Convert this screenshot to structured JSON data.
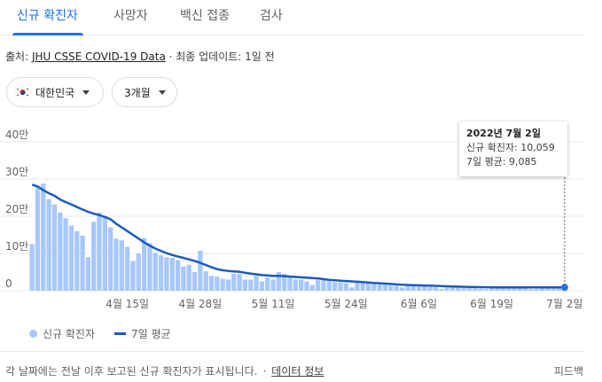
{
  "tabs": [
    "신규 확진자",
    "사망자",
    "백신 접종",
    "검사"
  ],
  "source": {
    "prefix": "출처: ",
    "link": "JHU CSSE COVID-19 Data",
    "suffix": " · 최종 업데이트: 1일 전"
  },
  "filters": {
    "country": "대한민국",
    "period": "3개월"
  },
  "tooltip": {
    "date": "2022년 7월 2일",
    "cases": "신규 확진자: 10,059",
    "avg": "7일 평균: 9,085"
  },
  "legend": {
    "bars": "신규 확진자",
    "line": "7일 평균"
  },
  "footer": {
    "note": "각 날짜에는 전날 이후 보고된 신규 확진자가 표시됩니다.",
    "link": "데이터 정보",
    "feedback": "피드백"
  },
  "colors": {
    "bar": "#a8c7fa",
    "line": "#1a5bbf",
    "accent": "#1a73e8"
  },
  "chart_data": {
    "type": "bar",
    "y_ticks": [
      "0",
      "10만",
      "20만",
      "30만",
      "40만"
    ],
    "y_tick_values": [
      0,
      100000,
      200000,
      300000,
      400000
    ],
    "ylim": [
      0,
      400000
    ],
    "x_ticks": [
      "4월 15일",
      "4월 28일",
      "5월 11일",
      "5월 24일",
      "6월 6일",
      "6월 19일",
      "7월 2일"
    ],
    "x_tick_index": [
      17,
      30,
      43,
      56,
      69,
      82,
      95
    ],
    "series": [
      {
        "name": "신규 확진자",
        "type": "bar",
        "values": [
          125000,
          278000,
          288000,
          246000,
          232000,
          210000,
          195000,
          175000,
          160000,
          148000,
          90000,
          185000,
          210000,
          200000,
          170000,
          140000,
          135000,
          118000,
          80000,
          100000,
          142000,
          128000,
          102000,
          95000,
          90000,
          88000,
          82000,
          65000,
          70000,
          50000,
          108000,
          52000,
          40000,
          38000,
          32000,
          30000,
          45000,
          45000,
          30000,
          30000,
          40000,
          25000,
          35000,
          30000,
          50000,
          45000,
          35000,
          30000,
          30000,
          25000,
          15000,
          28000,
          28000,
          25000,
          23000,
          22000,
          20000,
          9000,
          23000,
          22000,
          20000,
          18000,
          16000,
          15000,
          14000,
          13000,
          9000,
          12000,
          13000,
          12000,
          11000,
          10000,
          9000,
          5000,
          9000,
          9000,
          8000,
          7000,
          7000,
          6000,
          5000,
          4000,
          6000,
          8000,
          8000,
          7000,
          7000,
          6000,
          6000,
          4000,
          5000,
          7000,
          7000,
          8000,
          9000,
          10059
        ]
      },
      {
        "name": "7일 평균",
        "type": "line",
        "values": [
          285000,
          280000,
          270000,
          262000,
          255000,
          245000,
          238000,
          232000,
          225000,
          218000,
          212000,
          207000,
          203000,
          198000,
          192000,
          180000,
          170000,
          160000,
          150000,
          140000,
          130000,
          121000,
          113000,
          107000,
          101000,
          96000,
          92000,
          88000,
          84000,
          80000,
          75000,
          69000,
          63000,
          58000,
          55000,
          53000,
          52000,
          51000,
          48000,
          46000,
          44000,
          42000,
          41000,
          40000,
          40000,
          39000,
          38000,
          37000,
          36000,
          35000,
          34000,
          33000,
          31000,
          29000,
          28000,
          27000,
          26000,
          25000,
          24000,
          23000,
          22000,
          21000,
          20000,
          19000,
          18000,
          17000,
          16000,
          15500,
          15000,
          14500,
          14000,
          13500,
          13000,
          12500,
          12000,
          11500,
          11000,
          10500,
          10000,
          9800,
          9600,
          9400,
          9200,
          9000,
          8900,
          8800,
          8700,
          8700,
          8700,
          8700,
          8700,
          8800,
          8800,
          8900,
          9000,
          9085
        ]
      }
    ],
    "highlight_index": 95,
    "grid": true,
    "legend_position": "bottom-left"
  }
}
